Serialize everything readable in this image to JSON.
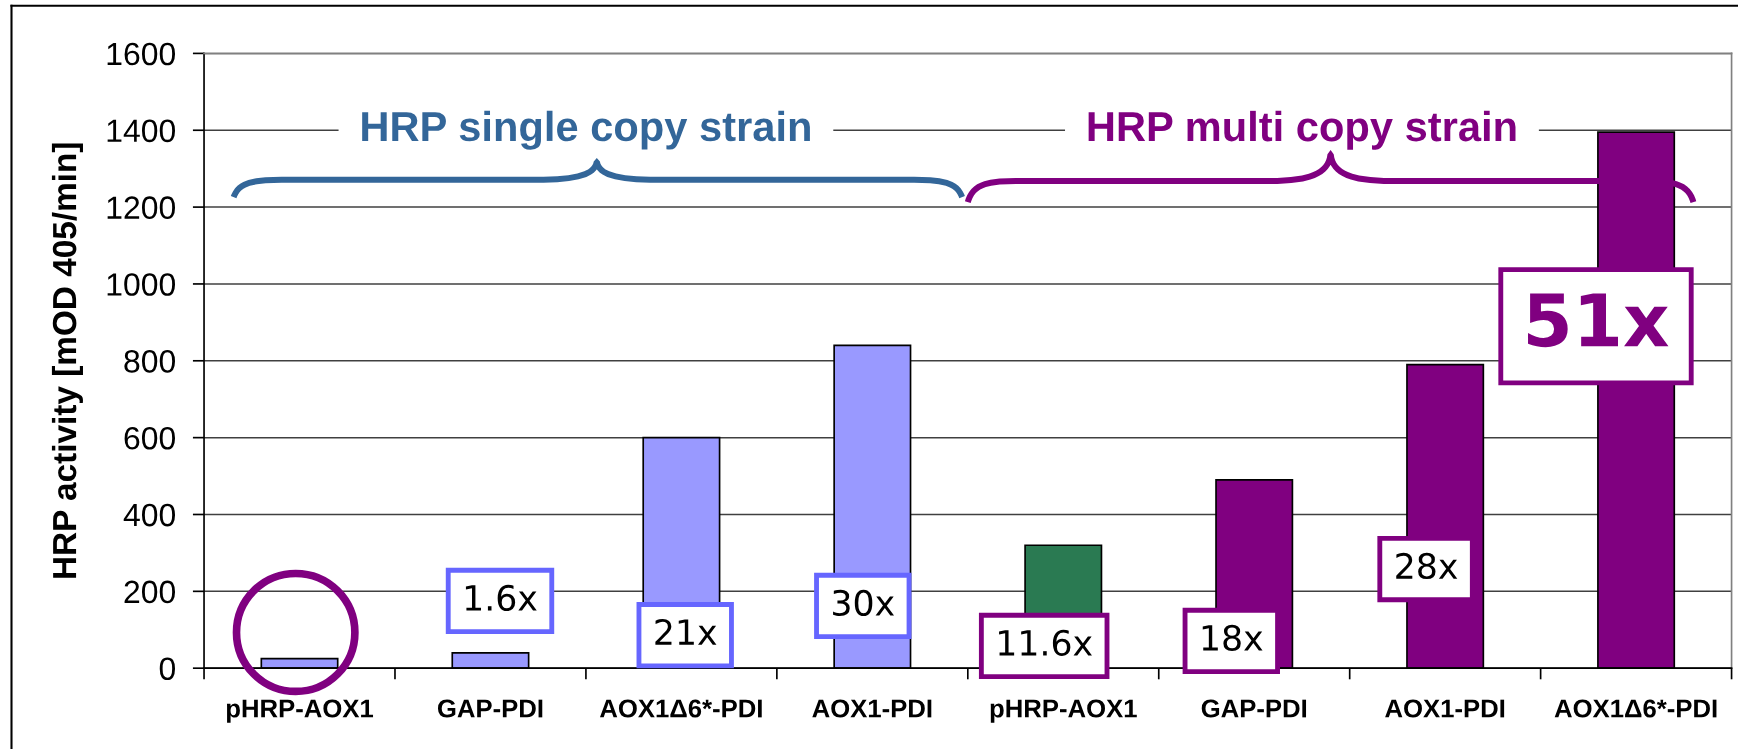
{
  "chart_data": {
    "type": "bar",
    "ylabel": "HRP activity [mOD 405/min]",
    "categories": [
      "pHRP-AOX1",
      "GAP-PDI",
      "AOX1Δ6*-PDI",
      "AOX1-PDI",
      "pHRP-AOX1",
      "GAP-PDI",
      "AOX1-PDI",
      "AOX1Δ6*-PDI"
    ],
    "values": [
      25,
      40,
      600,
      840,
      320,
      490,
      790,
      1395
    ],
    "colors": [
      "#9999ff",
      "#9999ff",
      "#9999ff",
      "#9999ff",
      "#2a7a52",
      "#800080",
      "#800080",
      "#800080"
    ],
    "ylim": [
      0,
      1600
    ],
    "yticks": [
      0,
      200,
      400,
      600,
      800,
      1000,
      1200,
      1400,
      1600
    ],
    "grid": "y",
    "annotations": [
      "HRP single copy strain",
      "HRP multi copy strain",
      "1.6x",
      "21x",
      "30x",
      "11.6x",
      "18x",
      "28x",
      "51x"
    ]
  }
}
